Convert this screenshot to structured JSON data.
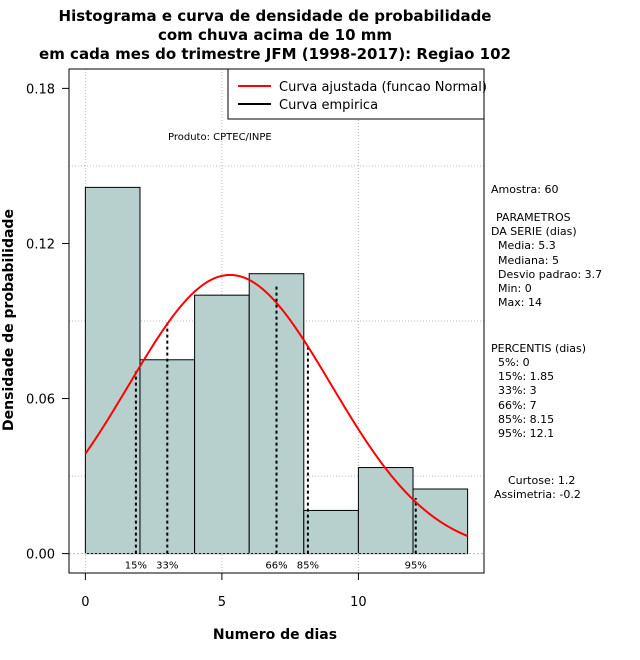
{
  "chart_data": {
    "type": "bar",
    "title": [
      "Histograma e curva de densidade de probabilidade",
      "com chuva acima de 10 mm",
      "em cada mes do trimestre JFM (1998-2017): Regiao 102"
    ],
    "xlabel": "Numero de dias",
    "ylabel": "Densidade de probabilidade",
    "xlim": [
      -0.6,
      14.6
    ],
    "ylim": [
      -0.0075,
      0.1875
    ],
    "x_ticks": [
      "0",
      "5",
      "10"
    ],
    "x_tick_values": [
      0,
      5,
      10
    ],
    "y_ticks": [
      "0.00",
      "0.06",
      "0.12",
      "0.18"
    ],
    "y_tick_values": [
      0,
      0.06,
      0.12,
      0.18
    ],
    "grid_y": [
      0.03,
      0.09,
      0.15
    ],
    "grid_x": [
      0,
      5,
      10
    ],
    "bins": [
      {
        "x0": 0,
        "x1": 2,
        "density": 0.1417
      },
      {
        "x0": 2,
        "x1": 4,
        "density": 0.075
      },
      {
        "x0": 4,
        "x1": 6,
        "density": 0.1
      },
      {
        "x0": 6,
        "x1": 8,
        "density": 0.1083
      },
      {
        "x0": 8,
        "x1": 10,
        "density": 0.0167
      },
      {
        "x0": 10,
        "x1": 12,
        "density": 0.0333
      },
      {
        "x0": 12,
        "x1": 14,
        "density": 0.025
      }
    ],
    "bar_color": "#b7cfcd",
    "normal_curve": {
      "mean": 5.3,
      "sd": 3.7,
      "color": "#ff0000"
    },
    "percentile_lines": [
      {
        "label": "15%",
        "x": 1.85,
        "y_top": 0.0705
      },
      {
        "label": "33%",
        "x": 3,
        "y_top": 0.0905
      },
      {
        "label": "66%",
        "x": 7,
        "y_top": 0.104
      },
      {
        "label": "85%",
        "x": 8.15,
        "y_top": 0.081
      },
      {
        "label": "95%",
        "x": 12.1,
        "y_top": 0.0215
      }
    ],
    "legend": {
      "position": "top-right",
      "entries": [
        {
          "label": "Curva ajustada (funcao Normal)",
          "color": "#ff0000"
        },
        {
          "label": "Curva empirica",
          "color": "#000000"
        }
      ]
    },
    "annotations": {
      "product": "Produto: CPTEC/INPE"
    }
  },
  "stats_panel": {
    "sample": "Amostra: 60",
    "params_title_1": "PARAMETROS",
    "params_title_2": "DA SERIE (dias)",
    "params": [
      "Media: 5.3",
      "Mediana: 5",
      "Desvio padrao: 3.7",
      "Min: 0",
      "Max: 14"
    ],
    "percentis_title": "PERCENTIS (dias)",
    "percentis": [
      "5%: 0",
      "15%: 1.85",
      "33%: 3",
      "66%: 7",
      "85%: 8.15",
      "95%: 12.1"
    ],
    "kurtosis": "Curtose: 1.2",
    "skewness": "Assimetria: -0.2"
  }
}
